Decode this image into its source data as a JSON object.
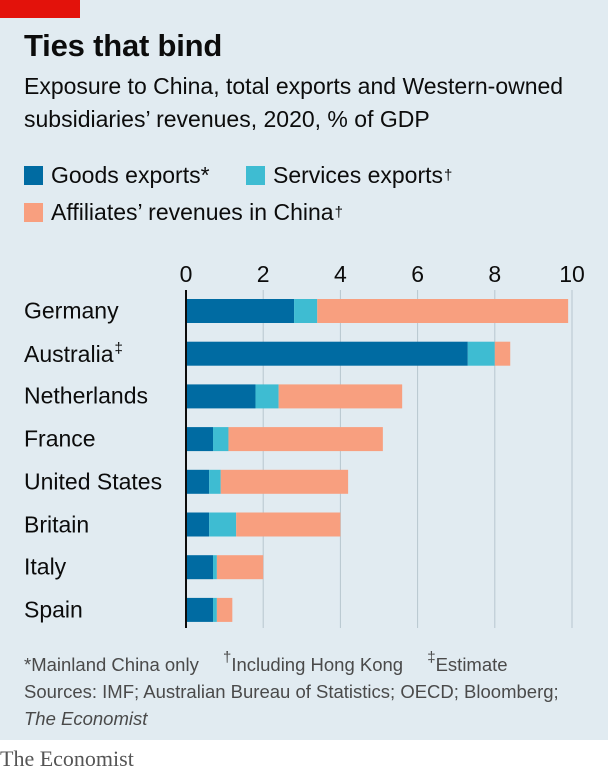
{
  "title": "Ties that bind",
  "subtitle": "Exposure to China, total exports and Western-owned subsidiaries’ revenues, 2020, % of GDP",
  "legend": [
    {
      "label": "Goods exports*",
      "sup": "",
      "color": "#006ba2"
    },
    {
      "label": "Services exports",
      "sup": "†",
      "color": "#3ebcd2"
    },
    {
      "label": "Affiliates’ revenues in China",
      "sup": "†",
      "color": "#f89f7f"
    }
  ],
  "chart_data": {
    "type": "bar",
    "orientation": "horizontal",
    "stacked": true,
    "title": "Ties that bind",
    "categories": [
      "Germany",
      "Australia",
      "Netherlands",
      "France",
      "United States",
      "Britain",
      "Italy",
      "Spain"
    ],
    "category_sups": [
      "",
      "‡",
      "",
      "",
      "",
      "",
      "",
      ""
    ],
    "series": [
      {
        "name": "Goods exports*",
        "color": "#006ba2",
        "values": [
          2.8,
          7.3,
          1.8,
          0.7,
          0.6,
          0.6,
          0.7,
          0.7
        ]
      },
      {
        "name": "Services exports†",
        "color": "#3ebcd2",
        "values": [
          0.6,
          0.7,
          0.6,
          0.4,
          0.3,
          0.7,
          0.1,
          0.1
        ]
      },
      {
        "name": "Affiliates’ revenues in China†",
        "color": "#f89f7f",
        "values": [
          6.5,
          0.4,
          3.2,
          4.0,
          3.3,
          2.7,
          1.2,
          0.4
        ]
      }
    ],
    "xlim": [
      0,
      10
    ],
    "xticks": [
      0,
      2,
      4,
      6,
      8,
      10
    ],
    "xlabel": "",
    "ylabel": "",
    "grid": true,
    "legend_position": "top"
  },
  "footnotes": {
    "notes": [
      {
        "mark": "",
        "text": "*Mainland China only"
      },
      {
        "mark": "†",
        "text": "Including Hong Kong"
      },
      {
        "mark": "‡",
        "text": "Estimate"
      }
    ],
    "sources_prefix": "Sources: IMF; Australian Bureau of Statistics; OECD; Bloomberg; ",
    "sources_italic": "The Economist"
  },
  "brand": "The Economist"
}
